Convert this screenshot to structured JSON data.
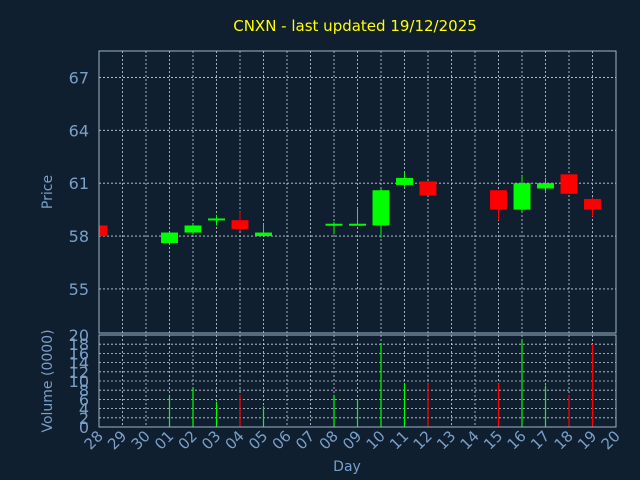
{
  "chart_data": [
    {
      "type": "candlestick",
      "title": "CNXN - last updated 19/12/2025",
      "ylabel": "Price",
      "ylim": [
        52.5,
        68.5
      ],
      "yticks": [
        "55",
        "58",
        "61",
        "64",
        "67"
      ],
      "categories": [
        "28",
        "29",
        "30",
        "01",
        "02",
        "03",
        "04",
        "05",
        "06",
        "07",
        "08",
        "09",
        "10",
        "11",
        "12",
        "13",
        "14",
        "15",
        "16",
        "17",
        "18",
        "19"
      ],
      "up_color": "#00ff00",
      "down_color": "#ff0000",
      "candles": [
        {
          "day": "28",
          "open": 58.6,
          "high": 58.6,
          "low": 58.0,
          "close": 58.0
        },
        {
          "day": "01",
          "open": 57.6,
          "high": 58.2,
          "low": 57.5,
          "close": 58.2
        },
        {
          "day": "02",
          "open": 58.2,
          "high": 58.7,
          "low": 58.1,
          "close": 58.6
        },
        {
          "day": "03",
          "open": 58.9,
          "high": 59.2,
          "low": 58.6,
          "close": 59.0
        },
        {
          "day": "04",
          "open": 58.9,
          "high": 59.4,
          "low": 58.3,
          "close": 58.4
        },
        {
          "day": "05",
          "open": 58.0,
          "high": 58.7,
          "low": 58.0,
          "close": 58.2
        },
        {
          "day": "08",
          "open": 58.6,
          "high": 58.8,
          "low": 58.1,
          "close": 58.7
        },
        {
          "day": "09",
          "open": 58.6,
          "high": 59.6,
          "low": 58.6,
          "close": 58.7
        },
        {
          "day": "10",
          "open": 58.6,
          "high": 60.7,
          "low": 57.9,
          "close": 60.6
        },
        {
          "day": "11",
          "open": 60.9,
          "high": 61.6,
          "low": 60.8,
          "close": 61.3
        },
        {
          "day": "12",
          "open": 61.1,
          "high": 61.1,
          "low": 60.3,
          "close": 60.3
        },
        {
          "day": "15",
          "open": 60.6,
          "high": 60.6,
          "low": 58.9,
          "close": 59.5
        },
        {
          "day": "16",
          "open": 59.5,
          "high": 61.4,
          "low": 59.4,
          "close": 61.0
        },
        {
          "day": "17",
          "open": 60.7,
          "high": 61.3,
          "low": 60.5,
          "close": 61.0
        },
        {
          "day": "18",
          "open": 61.5,
          "high": 61.5,
          "low": 60.4,
          "close": 60.4
        },
        {
          "day": "19",
          "open": 60.1,
          "high": 60.2,
          "low": 59.1,
          "close": 59.5
        }
      ]
    },
    {
      "type": "bar",
      "ylabel": "Volume (0000)",
      "xlabel": "Day",
      "ylim": [
        0,
        20
      ],
      "yticks": [
        "0",
        "2",
        "4",
        "6",
        "8",
        "10",
        "12",
        "14",
        "16",
        "18",
        "20"
      ],
      "categories": [
        "28",
        "29",
        "30",
        "01",
        "02",
        "03",
        "04",
        "05",
        "06",
        "07",
        "08",
        "09",
        "10",
        "11",
        "12",
        "13",
        "14",
        "15",
        "16",
        "17",
        "18",
        "19",
        "20"
      ],
      "bars": [
        {
          "day": "01",
          "value": 7,
          "dir": "up"
        },
        {
          "day": "02",
          "value": 8.5,
          "dir": "up"
        },
        {
          "day": "03",
          "value": 5.5,
          "dir": "up"
        },
        {
          "day": "04",
          "value": 7,
          "dir": "down"
        },
        {
          "day": "05",
          "value": 4.5,
          "dir": "up"
        },
        {
          "day": "08",
          "value": 7,
          "dir": "up"
        },
        {
          "day": "09",
          "value": 6,
          "dir": "up"
        },
        {
          "day": "10",
          "value": 18,
          "dir": "up"
        },
        {
          "day": "11",
          "value": 9.5,
          "dir": "up"
        },
        {
          "day": "12",
          "value": 9.5,
          "dir": "down"
        },
        {
          "day": "15",
          "value": 9.5,
          "dir": "down"
        },
        {
          "day": "16",
          "value": 19,
          "dir": "up"
        },
        {
          "day": "17",
          "value": 9,
          "dir": "up"
        },
        {
          "day": "18",
          "value": 7,
          "dir": "down"
        },
        {
          "day": "19",
          "value": 18,
          "dir": "down"
        }
      ]
    }
  ],
  "colors": {
    "background": "#0f1f30",
    "title": "#ffff00",
    "axis_text": "#7a9fc8",
    "axis_line": "#9fb3c8",
    "grid": "#c8d2dc"
  }
}
